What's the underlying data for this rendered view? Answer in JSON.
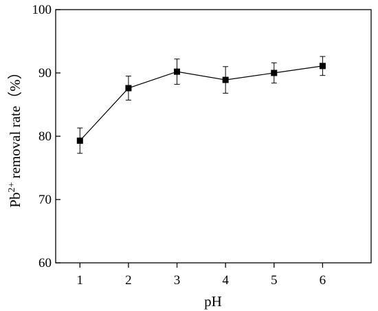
{
  "chart_data": {
    "type": "line",
    "x": [
      1,
      2,
      3,
      4,
      5,
      6
    ],
    "series": [
      {
        "values": [
          79.3,
          87.6,
          90.2,
          88.9,
          90.0,
          91.1
        ],
        "error": [
          2.0,
          1.9,
          2.0,
          2.1,
          1.6,
          1.5
        ]
      }
    ],
    "xlabel": "pH",
    "ylabel": {
      "prefix": "Pb",
      "superscript": "2+",
      "suffix": " removal rate（%）"
    },
    "xlim": [
      0.5,
      7.0
    ],
    "ylim": [
      60,
      100
    ],
    "xticks": [
      "1",
      "2",
      "3",
      "4",
      "5",
      "6"
    ],
    "yticks": [
      "60",
      "70",
      "80",
      "90",
      "100"
    ],
    "marker": "square",
    "grid": false,
    "legend": "none",
    "colors": {
      "line": "#000000",
      "marker": "#000000"
    }
  }
}
